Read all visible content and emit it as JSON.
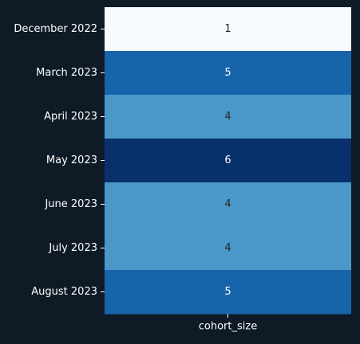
{
  "chart_data": {
    "type": "heatmap",
    "title": "",
    "xlabel": "",
    "ylabel": "",
    "columns": [
      "cohort_size"
    ],
    "rows": [
      "December 2022",
      "March 2023",
      "April 2023",
      "May 2023",
      "June 2023",
      "July 2023",
      "August 2023"
    ],
    "values": [
      [
        1
      ],
      [
        5
      ],
      [
        4
      ],
      [
        6
      ],
      [
        4
      ],
      [
        4
      ],
      [
        5
      ]
    ],
    "value_range": [
      1,
      6
    ],
    "colormap": "Blues",
    "annotations": true,
    "colorbar": false
  },
  "colors": {
    "background": "#0e1a26",
    "text": "#ffffff",
    "tick": "#ffffff",
    "annotation_light": "#ffffff",
    "annotation_dark": "#262626"
  }
}
